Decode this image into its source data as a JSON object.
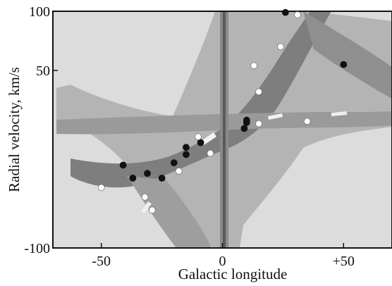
{
  "chart_data": {
    "type": "scatter",
    "title": "",
    "xlabel": "Galactic longitude",
    "ylabel": "Radial velocity, km/s",
    "xlim": [
      -70,
      70
    ],
    "ylim": [
      -100,
      100
    ],
    "grid": false,
    "x_ticks": [
      {
        "value": -50,
        "label": "-50"
      },
      {
        "value": 0,
        "label": "0"
      },
      {
        "value": 50,
        "label": "+50"
      }
    ],
    "y_ticks": [
      {
        "value": 100,
        "label": "100"
      },
      {
        "value": 50,
        "label": "50"
      },
      {
        "value": -100,
        "label": "-100"
      }
    ],
    "background": "grayscale position-velocity emission map",
    "colors": {
      "filled": "#111111",
      "open": "#ffffff",
      "background": "#dcdcdc"
    },
    "series": [
      {
        "marker": "filled",
        "points": [
          [
            -41,
            -30
          ],
          [
            -37,
            -41
          ],
          [
            -31,
            -37
          ],
          [
            -25,
            -41
          ],
          [
            -20,
            -28
          ],
          [
            -15,
            -21
          ],
          [
            -15,
            -15
          ],
          [
            -9,
            -11
          ],
          [
            9,
            1
          ],
          [
            10,
            6
          ],
          [
            10,
            8
          ],
          [
            26,
            99
          ],
          [
            50,
            55
          ]
        ]
      },
      {
        "marker": "open",
        "points": [
          [
            -50,
            -49
          ],
          [
            -32,
            -57
          ],
          [
            -29,
            -68
          ],
          [
            -18,
            -35
          ],
          [
            -10,
            -6
          ],
          [
            -5,
            -20
          ],
          [
            13,
            54
          ],
          [
            15,
            32
          ],
          [
            15,
            5
          ],
          [
            24,
            70
          ],
          [
            31,
            97
          ],
          [
            35,
            7
          ]
        ]
      }
    ]
  }
}
